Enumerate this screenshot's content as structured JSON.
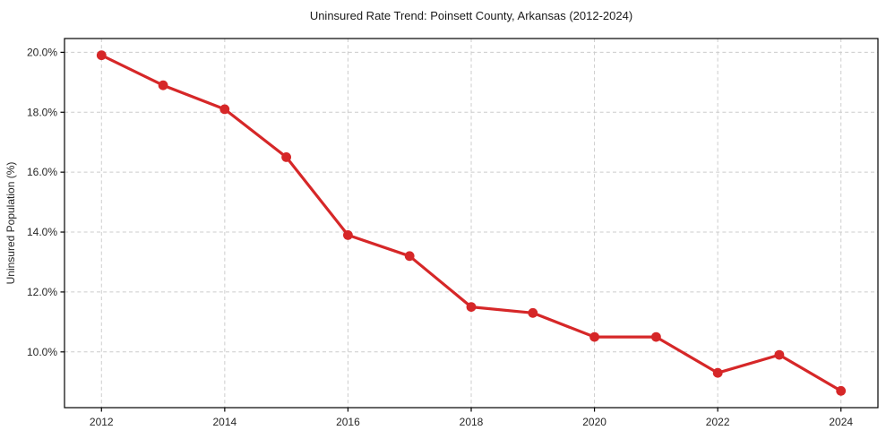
{
  "chart_data": {
    "type": "line",
    "title": "Uninsured Rate Trend: Poinsett County, Arkansas (2012-2024)",
    "xlabel": "",
    "ylabel": "Uninsured Population (%)",
    "x": [
      2012,
      2013,
      2014,
      2015,
      2016,
      2017,
      2018,
      2019,
      2020,
      2021,
      2022,
      2023,
      2024
    ],
    "series": [
      {
        "name": "Uninsured Population (%)",
        "color": "#d62728",
        "marker": "circle",
        "values": [
          19.9,
          18.9,
          18.1,
          16.5,
          13.9,
          13.2,
          11.5,
          11.3,
          10.5,
          10.5,
          9.3,
          9.9,
          8.7
        ]
      }
    ],
    "xlim": [
      2011.4,
      2024.6
    ],
    "ylim": [
      8.14,
      20.46
    ],
    "x_ticks": [
      {
        "value": 2012,
        "label": "2012"
      },
      {
        "value": 2014,
        "label": "2014"
      },
      {
        "value": 2016,
        "label": "2016"
      },
      {
        "value": 2018,
        "label": "2018"
      },
      {
        "value": 2020,
        "label": "2020"
      },
      {
        "value": 2022,
        "label": "2022"
      },
      {
        "value": 2024,
        "label": "2024"
      }
    ],
    "y_ticks": [
      {
        "value": 10,
        "label": "10.0%"
      },
      {
        "value": 12,
        "label": "12.0%"
      },
      {
        "value": 14,
        "label": "14.0%"
      },
      {
        "value": 16,
        "label": "16.0%"
      },
      {
        "value": 18,
        "label": "18.0%"
      },
      {
        "value": 20,
        "label": "20.0%"
      }
    ],
    "grid": true,
    "grid_style": "dashed",
    "legend": "none"
  },
  "style": {
    "line_color": "#d62728",
    "grid_color": "#cccccc",
    "spine_color": "#000000",
    "text_color": "#1a1a1a",
    "background": "#ffffff"
  }
}
